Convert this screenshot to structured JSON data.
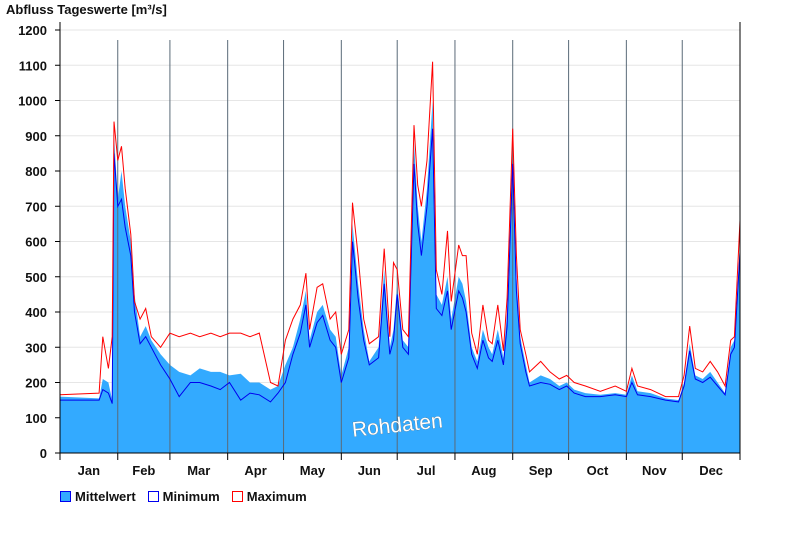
{
  "chart_data": {
    "type": "area",
    "title": "Abfluss Tageswerte [m³/s]",
    "xlabel": "",
    "ylabel": "",
    "ylim": [
      0,
      1200
    ],
    "yticks": [
      0,
      100,
      200,
      300,
      400,
      500,
      600,
      700,
      800,
      900,
      1000,
      1100,
      1200
    ],
    "categories": [
      "Jan",
      "Feb",
      "Mar",
      "Apr",
      "May",
      "Jun",
      "Jul",
      "Aug",
      "Sep",
      "Oct",
      "Nov",
      "Dec"
    ],
    "grid": true,
    "legend_position": "bottom-left",
    "watermark": "Rohdaten",
    "colors": {
      "mean": "#33aaff",
      "min": "#0000ee",
      "max": "#ff0000",
      "grid": "#e6e6e6"
    },
    "x": [
      0,
      21,
      23,
      26,
      28,
      29,
      31,
      33,
      35,
      38,
      40,
      43,
      46,
      49,
      54,
      59,
      64,
      70,
      75,
      81,
      86,
      91,
      97,
      102,
      107,
      113,
      117,
      121,
      125,
      129,
      132,
      134,
      138,
      141,
      145,
      148,
      151,
      155,
      157,
      160,
      163,
      166,
      171,
      174,
      177,
      179,
      181,
      184,
      187,
      190,
      192,
      194,
      197,
      200,
      202,
      205,
      208,
      210,
      214,
      216,
      218,
      221,
      224,
      227,
      230,
      232,
      235,
      238,
      240,
      243,
      245,
      247,
      250,
      252,
      258,
      263,
      268,
      272,
      276,
      282,
      290,
      298,
      304,
      307,
      310,
      317,
      325,
      332,
      335,
      338,
      341,
      345,
      349,
      353,
      357,
      360,
      362,
      365
    ],
    "series": [
      {
        "name": "Mittelwert",
        "values": [
          160,
          155,
          210,
          200,
          150,
          900,
          720,
          800,
          700,
          600,
          450,
          330,
          360,
          320,
          280,
          250,
          230,
          220,
          240,
          230,
          230,
          220,
          225,
          200,
          200,
          180,
          190,
          250,
          300,
          380,
          460,
          320,
          400,
          420,
          350,
          330,
          220,
          300,
          650,
          480,
          350,
          260,
          300,
          520,
          300,
          350,
          480,
          320,
          300,
          880,
          700,
          600,
          750,
          1000,
          450,
          420,
          500,
          380,
          500,
          480,
          430,
          300,
          260,
          350,
          300,
          280,
          350,
          270,
          400,
          880,
          500,
          330,
          250,
          200,
          220,
          210,
          190,
          200,
          180,
          170,
          165,
          170,
          165,
          220,
          175,
          170,
          155,
          150,
          200,
          310,
          220,
          210,
          230,
          200,
          170,
          300,
          320,
          590
        ]
      },
      {
        "name": "Minimum",
        "values": [
          150,
          150,
          180,
          170,
          140,
          850,
          700,
          720,
          640,
          560,
          400,
          310,
          330,
          300,
          250,
          210,
          160,
          200,
          200,
          190,
          180,
          200,
          150,
          170,
          165,
          145,
          170,
          200,
          280,
          340,
          420,
          300,
          370,
          390,
          320,
          300,
          200,
          270,
          600,
          440,
          320,
          250,
          270,
          480,
          280,
          320,
          450,
          300,
          280,
          820,
          650,
          560,
          700,
          920,
          410,
          390,
          460,
          350,
          460,
          440,
          400,
          280,
          240,
          320,
          270,
          260,
          320,
          250,
          360,
          820,
          460,
          310,
          230,
          190,
          200,
          195,
          180,
          190,
          170,
          160,
          160,
          165,
          160,
          200,
          165,
          160,
          150,
          145,
          190,
          290,
          210,
          200,
          215,
          190,
          165,
          280,
          300,
          570
        ]
      },
      {
        "name": "Maximum",
        "values": [
          165,
          170,
          330,
          240,
          330,
          940,
          830,
          870,
          750,
          620,
          430,
          380,
          410,
          330,
          300,
          340,
          330,
          340,
          330,
          340,
          330,
          340,
          340,
          330,
          340,
          200,
          190,
          320,
          380,
          420,
          510,
          350,
          470,
          480,
          380,
          400,
          280,
          350,
          710,
          560,
          380,
          310,
          330,
          580,
          330,
          540,
          520,
          350,
          330,
          930,
          760,
          700,
          830,
          1110,
          520,
          450,
          630,
          430,
          590,
          560,
          560,
          340,
          280,
          420,
          320,
          310,
          420,
          290,
          440,
          920,
          560,
          350,
          280,
          230,
          260,
          230,
          210,
          220,
          200,
          190,
          175,
          190,
          175,
          240,
          190,
          180,
          160,
          160,
          220,
          360,
          240,
          230,
          260,
          230,
          190,
          320,
          330,
          660
        ]
      }
    ]
  }
}
